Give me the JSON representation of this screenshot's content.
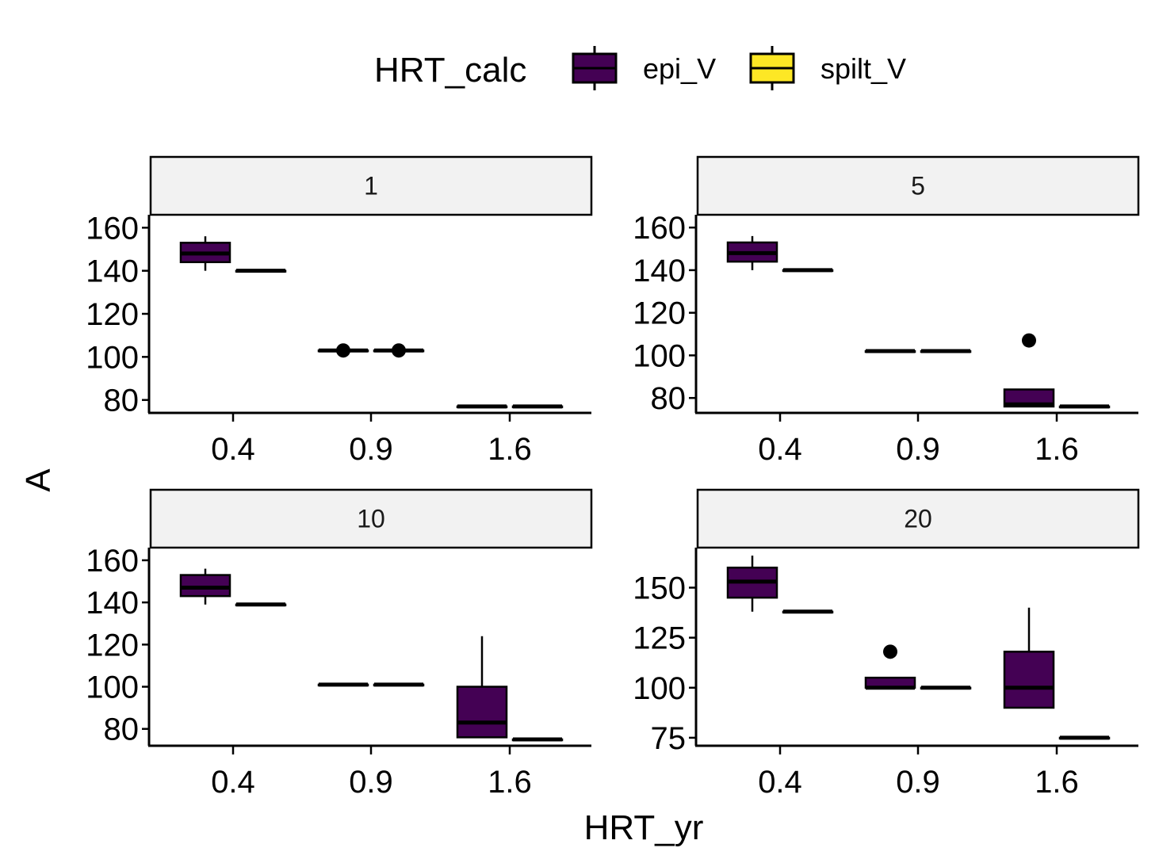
{
  "chart_data": {
    "type": "boxplot",
    "facet_variable_values": [
      "1",
      "5",
      "10",
      "20"
    ],
    "xlabel": "HRT_yr",
    "ylabel": "A",
    "legend": {
      "title": "HRT_calc",
      "position": "top",
      "entries": [
        {
          "label": "epi_V",
          "color": "#440154"
        },
        {
          "label": "spilt_V",
          "color": "#FDE725"
        }
      ]
    },
    "categories": [
      "0.4",
      "0.9",
      "1.6"
    ],
    "grid": false,
    "panels": [
      {
        "strip": "1",
        "ylim": [
          74,
          166
        ],
        "yticks": [
          80,
          100,
          120,
          140,
          160
        ],
        "boxes": [
          {
            "group": "epi_V",
            "x": "0.4",
            "min": 140,
            "q1": 144,
            "median": 148,
            "q3": 153,
            "max": 156,
            "outliers": []
          },
          {
            "group": "spilt_V",
            "x": "0.4",
            "min": 140,
            "q1": 140,
            "median": 140,
            "q3": 140,
            "max": 140,
            "outliers": []
          },
          {
            "group": "epi_V",
            "x": "0.9",
            "min": 103,
            "q1": 103,
            "median": 103,
            "q3": 103,
            "max": 103,
            "outliers": [
              103
            ]
          },
          {
            "group": "spilt_V",
            "x": "0.9",
            "min": 103,
            "q1": 103,
            "median": 103,
            "q3": 103,
            "max": 103,
            "outliers": [
              103
            ]
          },
          {
            "group": "epi_V",
            "x": "1.6",
            "min": 77,
            "q1": 77,
            "median": 77,
            "q3": 77,
            "max": 77,
            "outliers": []
          },
          {
            "group": "spilt_V",
            "x": "1.6",
            "min": 77,
            "q1": 77,
            "median": 77,
            "q3": 77,
            "max": 77,
            "outliers": []
          }
        ]
      },
      {
        "strip": "5",
        "ylim": [
          73,
          166
        ],
        "yticks": [
          80,
          100,
          120,
          140,
          160
        ],
        "boxes": [
          {
            "group": "epi_V",
            "x": "0.4",
            "min": 140,
            "q1": 144,
            "median": 148,
            "q3": 153,
            "max": 156,
            "outliers": []
          },
          {
            "group": "spilt_V",
            "x": "0.4",
            "min": 140,
            "q1": 140,
            "median": 140,
            "q3": 140,
            "max": 140,
            "outliers": []
          },
          {
            "group": "epi_V",
            "x": "0.9",
            "min": 102,
            "q1": 102,
            "median": 102,
            "q3": 102,
            "max": 102,
            "outliers": []
          },
          {
            "group": "spilt_V",
            "x": "0.9",
            "min": 102,
            "q1": 102,
            "median": 102,
            "q3": 102,
            "max": 102,
            "outliers": []
          },
          {
            "group": "epi_V",
            "x": "1.6",
            "min": 76,
            "q1": 76,
            "median": 77,
            "q3": 84,
            "max": 84,
            "outliers": [
              107
            ]
          },
          {
            "group": "spilt_V",
            "x": "1.6",
            "min": 76,
            "q1": 76,
            "median": 76,
            "q3": 76,
            "max": 76,
            "outliers": []
          }
        ]
      },
      {
        "strip": "10",
        "ylim": [
          72,
          166
        ],
        "yticks": [
          80,
          100,
          120,
          140,
          160
        ],
        "boxes": [
          {
            "group": "epi_V",
            "x": "0.4",
            "min": 139,
            "q1": 143,
            "median": 147,
            "q3": 153,
            "max": 156,
            "outliers": []
          },
          {
            "group": "spilt_V",
            "x": "0.4",
            "min": 139,
            "q1": 139,
            "median": 139,
            "q3": 139,
            "max": 139,
            "outliers": []
          },
          {
            "group": "epi_V",
            "x": "0.9",
            "min": 101,
            "q1": 101,
            "median": 101,
            "q3": 101,
            "max": 101,
            "outliers": []
          },
          {
            "group": "spilt_V",
            "x": "0.9",
            "min": 101,
            "q1": 101,
            "median": 101,
            "q3": 101,
            "max": 101,
            "outliers": []
          },
          {
            "group": "epi_V",
            "x": "1.6",
            "min": 76,
            "q1": 76,
            "median": 83,
            "q3": 100,
            "max": 124,
            "outliers": []
          },
          {
            "group": "spilt_V",
            "x": "1.6",
            "min": 75,
            "q1": 75,
            "median": 75,
            "q3": 75,
            "max": 75,
            "outliers": []
          }
        ]
      },
      {
        "strip": "20",
        "ylim": [
          71,
          170
        ],
        "yticks": [
          75,
          100,
          125,
          150
        ],
        "boxes": [
          {
            "group": "epi_V",
            "x": "0.4",
            "min": 138,
            "q1": 145,
            "median": 153,
            "q3": 160,
            "max": 166,
            "outliers": []
          },
          {
            "group": "spilt_V",
            "x": "0.4",
            "min": 138,
            "q1": 138,
            "median": 138,
            "q3": 138,
            "max": 138,
            "outliers": []
          },
          {
            "group": "epi_V",
            "x": "0.9",
            "min": 100,
            "q1": 100,
            "median": 100,
            "q3": 105,
            "max": 105,
            "outliers": [
              118
            ]
          },
          {
            "group": "spilt_V",
            "x": "0.9",
            "min": 100,
            "q1": 100,
            "median": 100,
            "q3": 100,
            "max": 100,
            "outliers": []
          },
          {
            "group": "epi_V",
            "x": "1.6",
            "min": 90,
            "q1": 90,
            "median": 100,
            "q3": 118,
            "max": 140,
            "outliers": []
          },
          {
            "group": "spilt_V",
            "x": "1.6",
            "min": 75,
            "q1": 75,
            "median": 75,
            "q3": 75,
            "max": 75,
            "outliers": []
          }
        ]
      }
    ]
  }
}
